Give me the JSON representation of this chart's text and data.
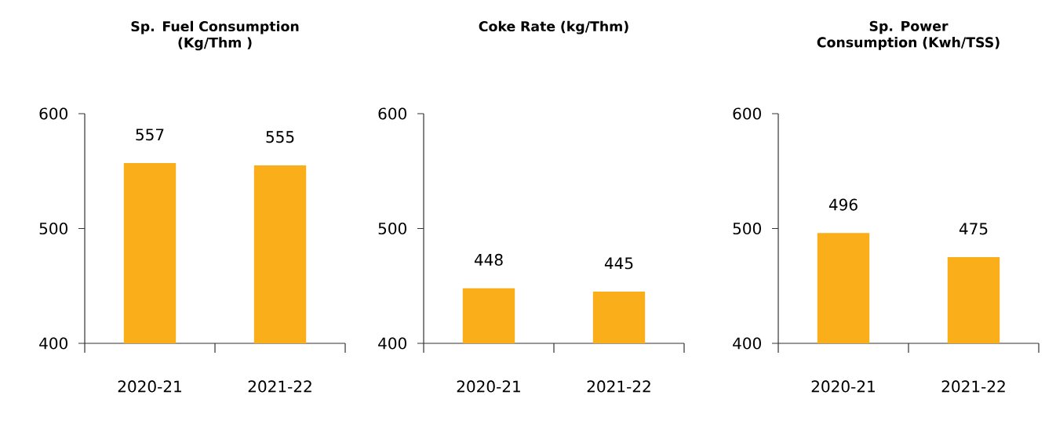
{
  "chart_data": [
    {
      "type": "bar",
      "title": "Sp. Fuel  Consumption (Kg/Thm )",
      "categories": [
        "2020-21",
        "2021-22"
      ],
      "values": [
        557,
        555
      ],
      "color": "#f9ae1a",
      "ylim": [
        400,
        600
      ],
      "yticks": [
        400,
        500,
        600
      ],
      "data_labels": true
    },
    {
      "type": "bar",
      "title": "Coke Rate  (kg/Thm)",
      "categories": [
        "2020-21",
        "2021-22"
      ],
      "values": [
        448,
        445
      ],
      "color": "#f9ae1a",
      "ylim": [
        400,
        600
      ],
      "yticks": [
        400,
        500,
        600
      ],
      "data_labels": true
    },
    {
      "type": "bar",
      "title": "Sp. Power Consumption (Kwh/TSS)",
      "categories": [
        "2020-21",
        "2021-22"
      ],
      "values": [
        496,
        475
      ],
      "color": "#f9ae1a",
      "ylim": [
        400,
        600
      ],
      "yticks": [
        400,
        500,
        600
      ],
      "data_labels": true
    }
  ]
}
